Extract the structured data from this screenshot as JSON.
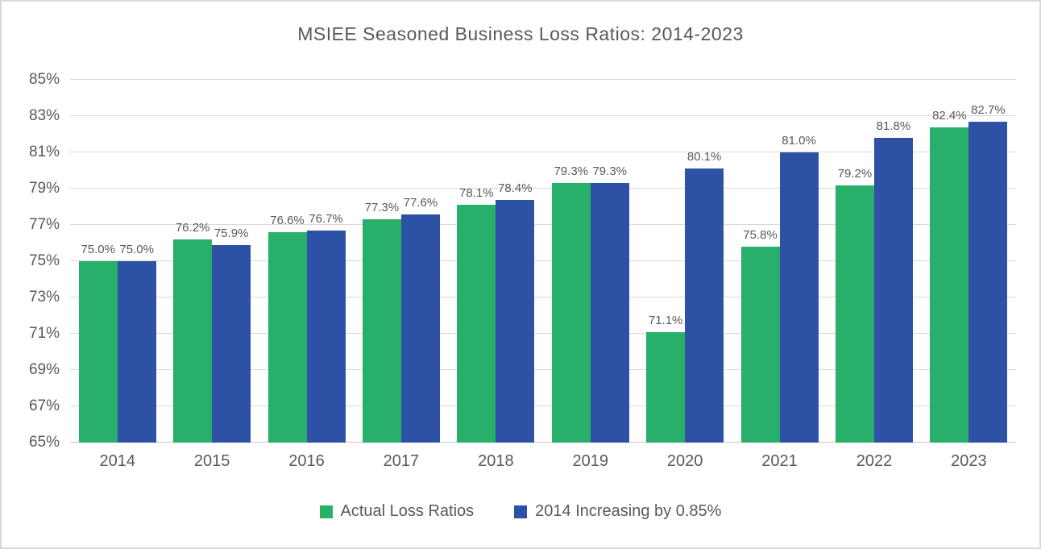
{
  "chart_data": {
    "type": "bar",
    "title": "MSIEE Seasoned Business Loss Ratios: 2014-2023",
    "categories": [
      "2014",
      "2015",
      "2016",
      "2017",
      "2018",
      "2019",
      "2020",
      "2021",
      "2022",
      "2023"
    ],
    "series": [
      {
        "name": "Actual Loss Ratios",
        "color": "#28af69",
        "values": [
          75.0,
          76.2,
          76.6,
          77.3,
          78.1,
          79.3,
          71.1,
          75.8,
          79.2,
          82.4
        ],
        "labels": [
          "75.0%",
          "76.2%",
          "76.6%",
          "77.3%",
          "78.1%",
          "79.3%",
          "71.1%",
          "75.8%",
          "79.2%",
          "82.4%"
        ]
      },
      {
        "name": "2014 Increasing by 0.85%",
        "color": "#2d52a5",
        "values": [
          75.0,
          75.9,
          76.7,
          77.6,
          78.4,
          79.3,
          80.1,
          81.0,
          81.8,
          82.7
        ],
        "labels": [
          "75.0%",
          "75.9%",
          "76.7%",
          "77.6%",
          "78.4%",
          "79.3%",
          "80.1%",
          "81.0%",
          "81.8%",
          "82.7%"
        ]
      }
    ],
    "ylim": [
      65,
      85
    ],
    "yticks": [
      65,
      67,
      69,
      71,
      73,
      75,
      77,
      79,
      81,
      83,
      85
    ],
    "ytick_labels": [
      "65%",
      "67%",
      "69%",
      "71%",
      "73%",
      "75%",
      "77%",
      "79%",
      "81%",
      "83%",
      "85%"
    ],
    "grid": true,
    "legend_position": "bottom"
  }
}
